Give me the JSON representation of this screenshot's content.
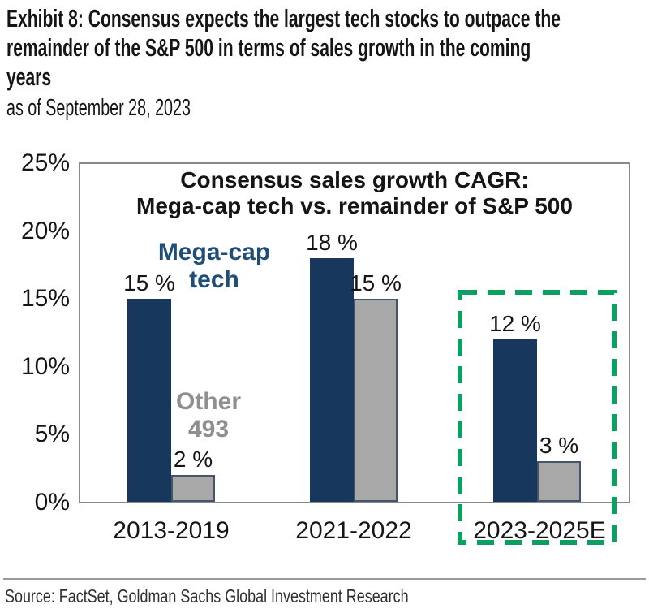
{
  "header": {
    "title_lines": [
      "Exhibit 8: Consensus expects the largest tech stocks to outpace the",
      "remainder of the S&P 500 in terms of sales growth in the coming",
      "years"
    ],
    "subtitle": "as of September 28, 2023"
  },
  "chart_data": {
    "type": "bar",
    "title_lines": [
      "Consensus sales growth CAGR:",
      "Mega-cap tech vs. remainder of S&P 500"
    ],
    "categories": [
      "2013-2019",
      "2021-2022",
      "2023-2025E"
    ],
    "series": [
      {
        "name": "Mega-cap tech",
        "key": "mega-cap-tech",
        "color": "#17375C",
        "border_color": "#17375C",
        "values": [
          15,
          18,
          12
        ],
        "value_labels": [
          "15 %",
          "18 %",
          "12 %"
        ]
      },
      {
        "name": "Other 493",
        "key": "other-493",
        "color": "#A8A8A8",
        "border_color": "#44546A",
        "values": [
          2,
          15,
          3
        ],
        "value_labels": [
          "2 %",
          "15 %",
          "3 %"
        ]
      }
    ],
    "series_labels": [
      {
        "lines": [
          "Mega-cap",
          "tech"
        ],
        "color": "#1F4E79"
      },
      {
        "lines": [
          "Other",
          "493"
        ],
        "color": "#8F8F8F"
      }
    ],
    "xlabel": "",
    "ylabel": "",
    "ylim": [
      0,
      25
    ],
    "yticks": [
      {
        "value": 25,
        "label": "25%"
      },
      {
        "value": 20,
        "label": "20%"
      },
      {
        "value": 15,
        "label": "15%"
      },
      {
        "value": 10,
        "label": "10%"
      },
      {
        "value": 5,
        "label": "5%"
      },
      {
        "value": 0,
        "label": "0%"
      }
    ],
    "grid": false,
    "legend": "inline-annotations",
    "highlight": {
      "category": "2023-2025E",
      "style": "dashed-box",
      "color": "#0CA060"
    }
  },
  "footer": {
    "source": "Source: FactSet, Goldman Sachs Global Investment Research"
  }
}
